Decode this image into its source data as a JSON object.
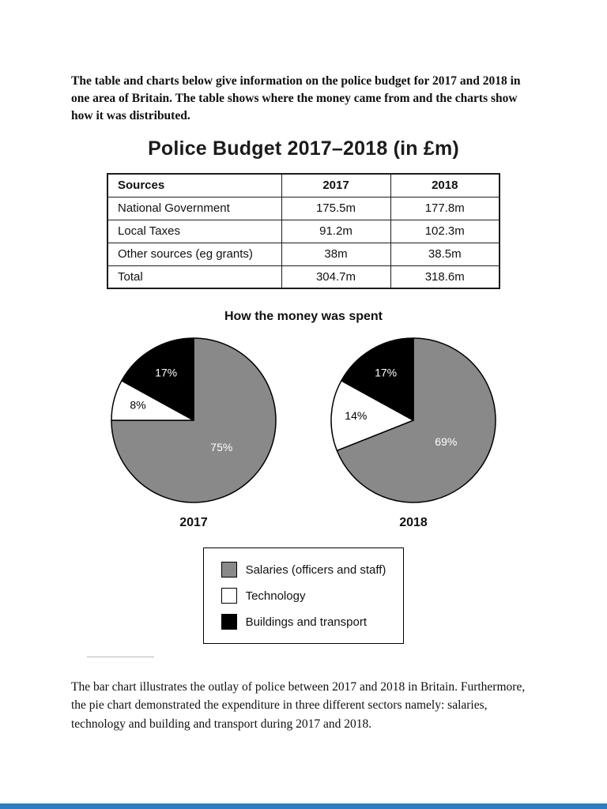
{
  "intro": "The table and charts below give information on the police budget for 2017 and 2018 in one area of Britain. The table shows where the money came from and the charts show how it was distributed.",
  "table": {
    "title": "Police Budget 2017–2018 (in £m)",
    "headers": [
      "Sources",
      "2017",
      "2018"
    ],
    "rows": [
      [
        "National Government",
        "175.5m",
        "177.8m"
      ],
      [
        "Local Taxes",
        "91.2m",
        "102.3m"
      ],
      [
        "Other sources (eg grants)",
        "38m",
        "38.5m"
      ],
      [
        "Total",
        "304.7m",
        "318.6m"
      ]
    ]
  },
  "chart_data": {
    "type": "pie",
    "title": "How the money was spent",
    "legend_position": "bottom",
    "categories": [
      "Salaries (officers and staff)",
      "Technology",
      "Buildings and transport"
    ],
    "colors": [
      "#898989",
      "#ffffff",
      "#000000"
    ],
    "charts": [
      {
        "label": "2017",
        "values": [
          75,
          8,
          17
        ],
        "value_labels": [
          "75%",
          "8%",
          "17%"
        ]
      },
      {
        "label": "2018",
        "values": [
          69,
          14,
          17
        ],
        "value_labels": [
          "69%",
          "14%",
          "17%"
        ]
      }
    ]
  },
  "body_text": "The bar chart illustrates the outlay of police between 2017 and 2018 in Britain. Furthermore, the pie chart demonstrated the expenditure in three different sectors namely: salaries, technology and building and transport during 2017 and 2018.",
  "ui": {
    "accent_bar_color": "#2d7dbf"
  }
}
